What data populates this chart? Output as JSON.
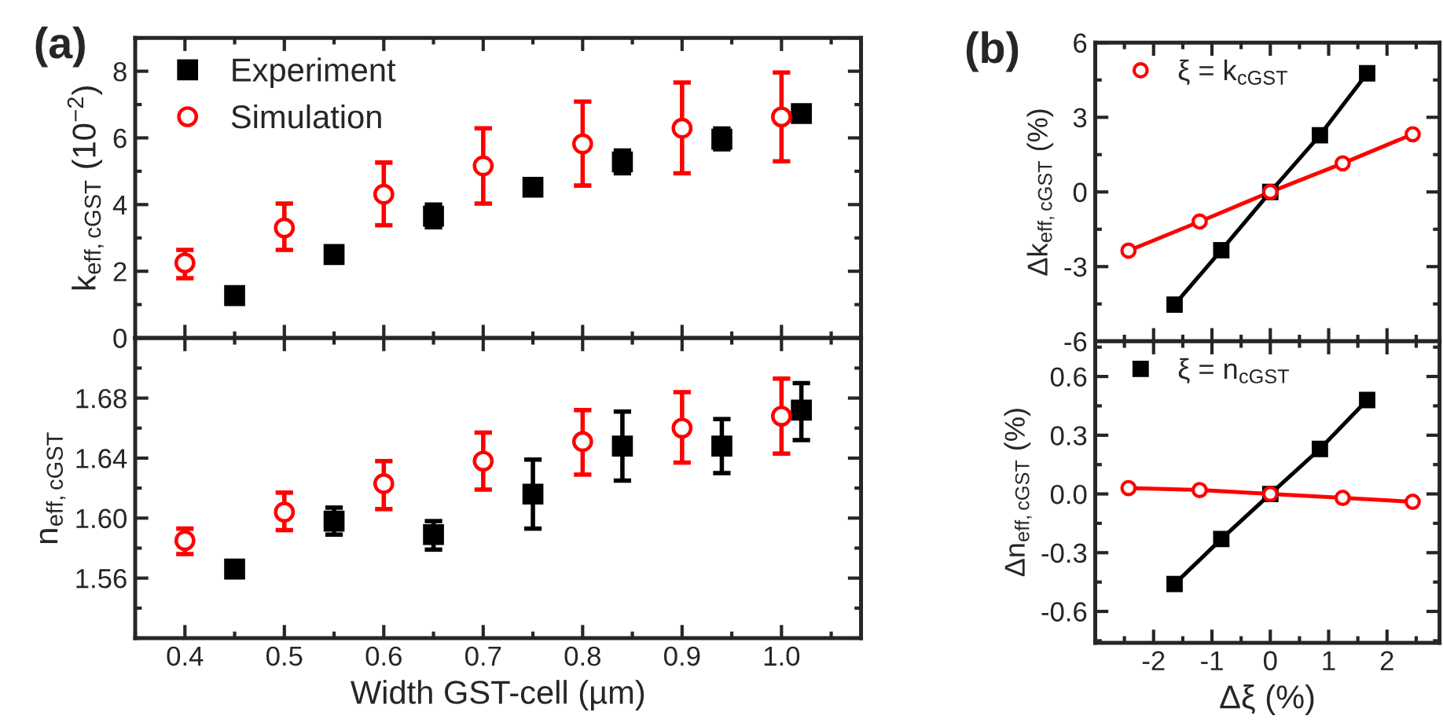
{
  "chart_data": [
    {
      "type": "scatter",
      "annotations": [
        "(a)"
      ],
      "ylabel": "k$_{eff,cGST}$ (10$^{−2}$)",
      "xlim": [
        0.35,
        1.08
      ],
      "ylim": [
        0,
        9
      ],
      "xticks": [
        0.4,
        0.5,
        0.6,
        0.7,
        0.8,
        0.9,
        1.0
      ],
      "yticks": [
        0,
        2,
        4,
        6,
        8
      ],
      "tick_labels": "y",
      "legend": "top left",
      "grid": false,
      "series": [
        {
          "name": "Experiment",
          "color": "#000000",
          "marker": "square",
          "x": [
            0.45,
            0.55,
            0.65,
            0.75,
            0.84,
            0.94,
            1.02
          ],
          "values": [
            1.27,
            2.5,
            3.65,
            4.52,
            5.28,
            5.96,
            6.73
          ],
          "errors": [
            null,
            null,
            [
              3.32,
              4.0
            ],
            null,
            [
              4.94,
              5.62
            ],
            [
              5.66,
              6.28
            ],
            [
              6.53,
              6.93
            ]
          ]
        },
        {
          "name": "Simulation",
          "color": "#ff0000",
          "marker": "circle",
          "x": [
            0.4,
            0.5,
            0.6,
            0.7,
            0.8,
            0.9,
            1.0
          ],
          "values": [
            2.25,
            3.3,
            4.31,
            5.16,
            5.82,
            6.29,
            6.63
          ],
          "errors": [
            [
              1.79,
              2.64
            ],
            [
              2.64,
              4.03
            ],
            [
              3.38,
              5.26
            ],
            [
              4.03,
              6.29
            ],
            [
              4.57,
              7.09
            ],
            [
              4.94,
              7.66
            ],
            [
              5.3,
              7.96
            ]
          ]
        }
      ]
    },
    {
      "type": "scatter",
      "xlabel": "Width GST-cell (µm)",
      "ylabel": "n$_{eff,cGST}$",
      "xlim": [
        0.35,
        1.08
      ],
      "ylim": [
        1.52,
        1.72
      ],
      "xticks": [
        0.4,
        0.5,
        0.6,
        0.7,
        0.8,
        0.9,
        {
          "value": 1.0,
          "label": "1.0"
        }
      ],
      "yticks": [
        1.56,
        {
          "value": 1.6,
          "label": "1.60"
        },
        1.64,
        1.68
      ],
      "grid": false,
      "series": [
        {
          "color": "#000000",
          "marker": "square",
          "x": [
            0.45,
            0.55,
            0.65,
            0.75,
            0.84,
            0.94,
            1.02
          ],
          "values": [
            1.566,
            1.598,
            1.589,
            1.616,
            1.648,
            1.648,
            1.672
          ],
          "errors": [
            null,
            [
              1.589,
              1.607
            ],
            [
              1.579,
              1.598
            ],
            [
              1.593,
              1.639
            ],
            [
              1.625,
              1.671
            ],
            [
              1.63,
              1.666
            ],
            [
              1.652,
              1.69
            ]
          ]
        },
        {
          "color": "#ff0000",
          "marker": "circle",
          "x": [
            0.4,
            0.5,
            0.6,
            0.7,
            0.8,
            0.9,
            1.0
          ],
          "values": [
            1.585,
            1.604,
            1.623,
            1.638,
            1.651,
            1.66,
            1.668
          ],
          "errors": [
            [
              1.576,
              1.593
            ],
            [
              1.592,
              1.617
            ],
            [
              1.606,
              1.638
            ],
            [
              1.619,
              1.657
            ],
            [
              1.629,
              1.672
            ],
            [
              1.637,
              1.684
            ],
            [
              1.643,
              1.693
            ]
          ]
        }
      ]
    },
    {
      "type": "line",
      "annotations": [
        "(b)"
      ],
      "ylabel": "Δk$_{eff,cGST}$ (%)",
      "xlim": [
        -3,
        2.9
      ],
      "ylim": [
        -6,
        6
      ],
      "xticks": [
        -2,
        -1,
        0,
        1,
        2
      ],
      "yticks": [
        -6,
        -3,
        0,
        3,
        6
      ],
      "tick_labels": "y",
      "legend": "top left",
      "grid": false,
      "line_style": "solid",
      "series": [
        {
          "color": "#000000",
          "marker": "square",
          "x": [
            -1.64,
            -0.84,
            0,
            0.85,
            1.66
          ],
          "values": [
            -4.53,
            -2.34,
            0,
            2.28,
            4.77
          ]
        },
        {
          "name": "ξ = k$_{cGST}$",
          "color": "#ff0000",
          "marker": "circle",
          "x": [
            -2.43,
            -1.21,
            0,
            1.24,
            2.44
          ],
          "values": [
            -2.36,
            -1.19,
            0,
            1.15,
            2.32
          ]
        }
      ]
    },
    {
      "type": "line",
      "xlabel": "Δξ (%)",
      "ylabel": "Δn$_{eff,cGST}$ (%)",
      "xlim": [
        -3,
        2.9
      ],
      "ylim": [
        -0.76,
        0.78
      ],
      "xticks": [
        -2,
        -1,
        0,
        1,
        2
      ],
      "yticks": [
        -0.6,
        -0.3,
        {
          "value": 0,
          "label": "0.0"
        },
        0.3,
        0.6
      ],
      "legend": "top left",
      "grid": false,
      "line_style": "solid",
      "series": [
        {
          "name": "ξ = n$_{cGST}$",
          "color": "#000000",
          "marker": "square",
          "x": [
            -1.64,
            -0.84,
            0,
            0.85,
            1.66
          ],
          "values": [
            -0.46,
            -0.23,
            0,
            0.23,
            0.48
          ]
        },
        {
          "color": "#ff0000",
          "marker": "circle",
          "x": [
            -2.43,
            -1.21,
            0,
            1.24,
            2.44
          ],
          "values": [
            0.03,
            0.02,
            0,
            -0.02,
            -0.04
          ]
        }
      ]
    }
  ]
}
